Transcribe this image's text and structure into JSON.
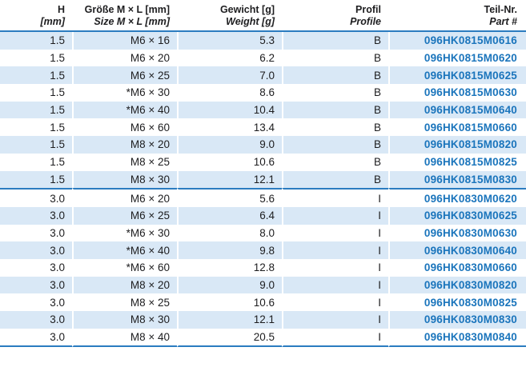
{
  "table": {
    "columns": [
      {
        "id": "h",
        "line1": "H",
        "line2": "[mm]"
      },
      {
        "id": "size",
        "line1": "Größe M × L [mm]",
        "line2": "Size M × L [mm]"
      },
      {
        "id": "weight",
        "line1": "Gewicht [g]",
        "line2": "Weight [g]"
      },
      {
        "id": "profile",
        "line1": "Profil",
        "line2": "Profile"
      },
      {
        "id": "part",
        "line1": "Teil-Nr.",
        "line2": "Part #"
      }
    ],
    "rows": [
      {
        "h": "1.5",
        "size": "M6 × 16",
        "weight": "5.3",
        "profile": "B",
        "part": "096HK0815M0616"
      },
      {
        "h": "1.5",
        "size": "M6 × 20",
        "weight": "6.2",
        "profile": "B",
        "part": "096HK0815M0620"
      },
      {
        "h": "1.5",
        "size": "M6 × 25",
        "weight": "7.0",
        "profile": "B",
        "part": "096HK0815M0625"
      },
      {
        "h": "1.5",
        "size": "*M6 × 30",
        "weight": "8.6",
        "profile": "B",
        "part": "096HK0815M0630"
      },
      {
        "h": "1.5",
        "size": "*M6 × 40",
        "weight": "10.4",
        "profile": "B",
        "part": "096HK0815M0640"
      },
      {
        "h": "1.5",
        "size": "M6 × 60",
        "weight": "13.4",
        "profile": "B",
        "part": "096HK0815M0660"
      },
      {
        "h": "1.5",
        "size": "M8 × 20",
        "weight": "9.0",
        "profile": "B",
        "part": "096HK0815M0820"
      },
      {
        "h": "1.5",
        "size": "M8 × 25",
        "weight": "10.6",
        "profile": "B",
        "part": "096HK0815M0825"
      },
      {
        "h": "1.5",
        "size": "M8 × 30",
        "weight": "12.1",
        "profile": "B",
        "part": "096HK0815M0830"
      },
      {
        "h": "3.0",
        "size": "M6 × 20",
        "weight": "5.6",
        "profile": "I",
        "part": "096HK0830M0620"
      },
      {
        "h": "3.0",
        "size": "M6 × 25",
        "weight": "6.4",
        "profile": "I",
        "part": "096HK0830M0625"
      },
      {
        "h": "3.0",
        "size": "*M6 × 30",
        "weight": "8.0",
        "profile": "I",
        "part": "096HK0830M0630"
      },
      {
        "h": "3.0",
        "size": "*M6 × 40",
        "weight": "9.8",
        "profile": "I",
        "part": "096HK0830M0640"
      },
      {
        "h": "3.0",
        "size": "*M6 × 60",
        "weight": "12.8",
        "profile": "I",
        "part": "096HK0830M0660"
      },
      {
        "h": "3.0",
        "size": "M8 × 20",
        "weight": "9.0",
        "profile": "I",
        "part": "096HK0830M0820"
      },
      {
        "h": "3.0",
        "size": "M8 × 25",
        "weight": "10.6",
        "profile": "I",
        "part": "096HK0830M0825"
      },
      {
        "h": "3.0",
        "size": "M8 × 30",
        "weight": "12.1",
        "profile": "I",
        "part": "096HK0830M0830"
      },
      {
        "h": "3.0",
        "size": "M8 × 40",
        "weight": "20.5",
        "profile": "I",
        "part": "096HK0830M0840"
      }
    ]
  },
  "colors": {
    "stripe": "#d9e8f6",
    "rule_blue": "#2b7cc0",
    "part_number_blue": "#1b75bc",
    "text": "#1d1d1f"
  }
}
